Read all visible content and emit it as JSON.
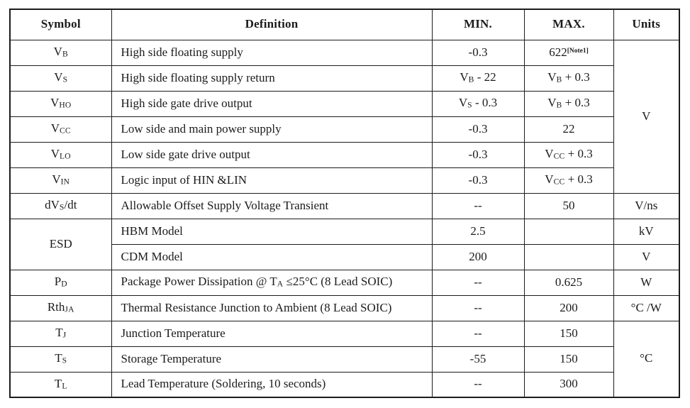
{
  "header": {
    "symbol": "Symbol",
    "definition": "Definition",
    "min": "MIN.",
    "max": "MAX.",
    "units": "Units"
  },
  "merged_units": {
    "voltage_group": "V",
    "temperature_group": "°C"
  },
  "rows": {
    "vb": {
      "sym_pre": "V",
      "sym_sub": "B",
      "def": "High side floating supply",
      "min": "-0.3",
      "max": "622",
      "max_note": "[Note1]"
    },
    "vs": {
      "sym_pre": "V",
      "sym_sub": "S",
      "def": "High side floating supply return",
      "min_pre": "V",
      "min_sub": "B",
      "min_post": " - 22",
      "max_pre": "V",
      "max_sub": "B",
      "max_post": " + 0.3"
    },
    "vho": {
      "sym_pre": "V",
      "sym_sub": "HO",
      "def": "High side gate drive output",
      "min_pre": "V",
      "min_sub": "S",
      "min_post": " - 0.3",
      "max_pre": "V",
      "max_sub": "B",
      "max_post": " + 0.3"
    },
    "vcc": {
      "sym_pre": "V",
      "sym_sub": "CC",
      "def": "Low side and main power supply",
      "min": "-0.3",
      "max": "22"
    },
    "vlo": {
      "sym_pre": "V",
      "sym_sub": "LO",
      "def": "Low side gate drive output",
      "min": "-0.3",
      "max_pre": "V",
      "max_sub": "CC",
      "max_post": " + 0.3"
    },
    "vin": {
      "sym_pre": "V",
      "sym_sub": "IN",
      "def": "Logic input of HIN &LIN",
      "min": "-0.3",
      "max_pre": "V",
      "max_sub": "CC",
      "max_post": " + 0.3"
    },
    "dvsdt": {
      "sym_pre": "dV",
      "sym_sub": "S",
      "sym_post": "/dt",
      "def": "Allowable Offset Supply Voltage Transient",
      "min": "--",
      "max": "50",
      "units": "V/ns"
    },
    "esd_hbm": {
      "sym": "ESD",
      "def": "HBM Model",
      "min": "2.5",
      "max": "",
      "units": "kV"
    },
    "esd_cdm": {
      "def": "CDM Model",
      "min": "200",
      "max": "",
      "units": "V"
    },
    "pd": {
      "sym_pre": "P",
      "sym_sub": "D",
      "def_pre": "Package Power Dissipation @ T",
      "def_sub": "A",
      "def_post": " ≤25°C (8 Lead SOIC)",
      "min": "--",
      "max": "0.625",
      "units": "W"
    },
    "rthja": {
      "sym_pre": "Rth",
      "sym_sub": "JA",
      "def": "Thermal Resistance Junction to Ambient (8 Lead SOIC)",
      "min": "--",
      "max": "200",
      "units": "°C /W"
    },
    "tj": {
      "sym_pre": "T",
      "sym_sub": "J",
      "def": "Junction Temperature",
      "min": "--",
      "max": "150"
    },
    "ts": {
      "sym_pre": "T",
      "sym_sub": "S",
      "def": "Storage Temperature",
      "min": "-55",
      "max": "150"
    },
    "tl": {
      "sym_pre": "T",
      "sym_sub": "L",
      "def": "Lead Temperature (Soldering, 10 seconds)",
      "min": "--",
      "max": "300"
    }
  }
}
